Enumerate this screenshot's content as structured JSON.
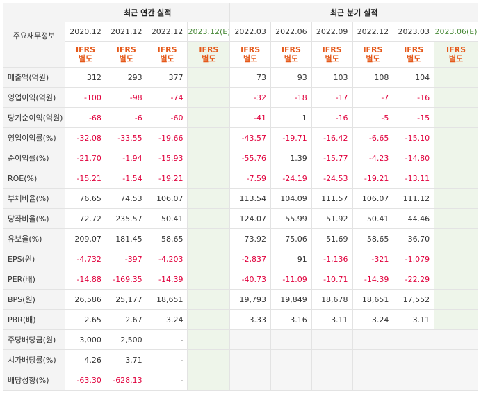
{
  "header": {
    "row_label": "주요재무정보",
    "annual_title": "최근 연간 실적",
    "quarterly_title": "최근 분기 실적",
    "annual_periods": [
      "2020.12",
      "2021.12",
      "2022.12",
      "2023.12(E)"
    ],
    "quarterly_periods": [
      "2022.03",
      "2022.06",
      "2022.09",
      "2022.12",
      "2023.03",
      "2023.06(E)"
    ],
    "standard_line1": "IFRS",
    "standard_line2": "별도"
  },
  "rows": [
    {
      "label": "매출액(억원)",
      "annual": [
        "312",
        "293",
        "377",
        ""
      ],
      "quarterly": [
        "73",
        "93",
        "103",
        "108",
        "104",
        ""
      ]
    },
    {
      "label": "영업이익(억원)",
      "annual": [
        "-100",
        "-98",
        "-74",
        ""
      ],
      "quarterly": [
        "-32",
        "-18",
        "-17",
        "-7",
        "-16",
        ""
      ]
    },
    {
      "label": "당기순이익(억원)",
      "annual": [
        "-68",
        "-6",
        "-60",
        ""
      ],
      "quarterly": [
        "-41",
        "1",
        "-16",
        "-5",
        "-15",
        ""
      ]
    },
    {
      "label": "영업이익률(%)",
      "annual": [
        "-32.08",
        "-33.55",
        "-19.66",
        ""
      ],
      "quarterly": [
        "-43.57",
        "-19.71",
        "-16.42",
        "-6.65",
        "-15.10",
        ""
      ]
    },
    {
      "label": "순이익률(%)",
      "annual": [
        "-21.70",
        "-1.94",
        "-15.93",
        ""
      ],
      "quarterly": [
        "-55.76",
        "1.39",
        "-15.77",
        "-4.23",
        "-14.80",
        ""
      ]
    },
    {
      "label": "ROE(%)",
      "annual": [
        "-15.21",
        "-1.54",
        "-19.21",
        ""
      ],
      "quarterly": [
        "-7.59",
        "-24.19",
        "-24.53",
        "-19.21",
        "-13.11",
        ""
      ]
    },
    {
      "label": "부채비율(%)",
      "annual": [
        "76.65",
        "74.53",
        "106.07",
        ""
      ],
      "quarterly": [
        "113.54",
        "104.09",
        "111.57",
        "106.07",
        "111.12",
        ""
      ]
    },
    {
      "label": "당좌비율(%)",
      "annual": [
        "72.72",
        "235.57",
        "50.41",
        ""
      ],
      "quarterly": [
        "124.07",
        "55.99",
        "51.92",
        "50.41",
        "44.46",
        ""
      ]
    },
    {
      "label": "유보율(%)",
      "annual": [
        "209.07",
        "181.45",
        "58.65",
        ""
      ],
      "quarterly": [
        "73.92",
        "75.06",
        "51.69",
        "58.65",
        "36.70",
        ""
      ]
    },
    {
      "label": "EPS(원)",
      "annual": [
        "-4,732",
        "-397",
        "-4,203",
        ""
      ],
      "quarterly": [
        "-2,837",
        "91",
        "-1,136",
        "-321",
        "-1,079",
        ""
      ]
    },
    {
      "label": "PER(배)",
      "annual": [
        "-14.88",
        "-169.35",
        "-14.39",
        ""
      ],
      "quarterly": [
        "-40.73",
        "-11.09",
        "-10.71",
        "-14.39",
        "-22.29",
        ""
      ]
    },
    {
      "label": "BPS(원)",
      "annual": [
        "26,586",
        "25,177",
        "18,651",
        ""
      ],
      "quarterly": [
        "19,793",
        "19,849",
        "18,678",
        "18,651",
        "17,552",
        ""
      ]
    },
    {
      "label": "PBR(배)",
      "annual": [
        "2.65",
        "2.67",
        "3.24",
        ""
      ],
      "quarterly": [
        "3.33",
        "3.16",
        "3.11",
        "3.24",
        "3.11",
        ""
      ]
    },
    {
      "label": "주당배당금(원)",
      "annual": [
        "3,000",
        "2,500",
        "-",
        ""
      ],
      "quarterly": null
    },
    {
      "label": "시가배당률(%)",
      "annual": [
        "4.26",
        "3.71",
        "-",
        ""
      ],
      "quarterly": null
    },
    {
      "label": "배당성향(%)",
      "annual": [
        "-63.30",
        "-628.13",
        "-",
        ""
      ],
      "quarterly": null
    }
  ],
  "colors": {
    "negative": "#e0003c",
    "standard": "#e5591a",
    "estimate_bg": "#eef5ea",
    "estimate_text": "#4a8a3a"
  }
}
